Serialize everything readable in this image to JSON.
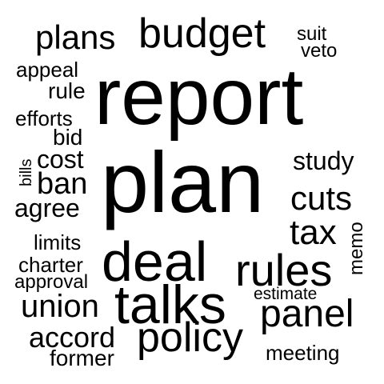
{
  "word_cloud": {
    "text_color": "#000000",
    "background_color": "#ffffff",
    "words": [
      {
        "text": "report",
        "orientation": "horizontal"
      },
      {
        "text": "plan",
        "orientation": "horizontal"
      },
      {
        "text": "deal",
        "orientation": "horizontal"
      },
      {
        "text": "talks",
        "orientation": "horizontal"
      },
      {
        "text": "budget",
        "orientation": "horizontal"
      },
      {
        "text": "rules",
        "orientation": "horizontal"
      },
      {
        "text": "policy",
        "orientation": "horizontal"
      },
      {
        "text": "plans",
        "orientation": "horizontal"
      },
      {
        "text": "panel",
        "orientation": "horizontal"
      },
      {
        "text": "cuts",
        "orientation": "horizontal"
      },
      {
        "text": "tax",
        "orientation": "horizontal"
      },
      {
        "text": "union",
        "orientation": "horizontal"
      },
      {
        "text": "ban",
        "orientation": "horizontal"
      },
      {
        "text": "cost",
        "orientation": "horizontal"
      },
      {
        "text": "accord",
        "orientation": "horizontal"
      },
      {
        "text": "agree",
        "orientation": "horizontal"
      },
      {
        "text": "study",
        "orientation": "horizontal"
      },
      {
        "text": "bid",
        "orientation": "horizontal"
      },
      {
        "text": "charter",
        "orientation": "horizontal"
      },
      {
        "text": "limits",
        "orientation": "horizontal"
      },
      {
        "text": "former",
        "orientation": "horizontal"
      },
      {
        "text": "meeting",
        "orientation": "horizontal"
      },
      {
        "text": "efforts",
        "orientation": "horizontal"
      },
      {
        "text": "appeal",
        "orientation": "horizontal"
      },
      {
        "text": "rule",
        "orientation": "horizontal"
      },
      {
        "text": "approval",
        "orientation": "horizontal"
      },
      {
        "text": "suit",
        "orientation": "horizontal"
      },
      {
        "text": "veto",
        "orientation": "horizontal"
      },
      {
        "text": "memo",
        "orientation": "vertical"
      },
      {
        "text": "estimate",
        "orientation": "horizontal"
      },
      {
        "text": "bills",
        "orientation": "vertical"
      }
    ]
  }
}
